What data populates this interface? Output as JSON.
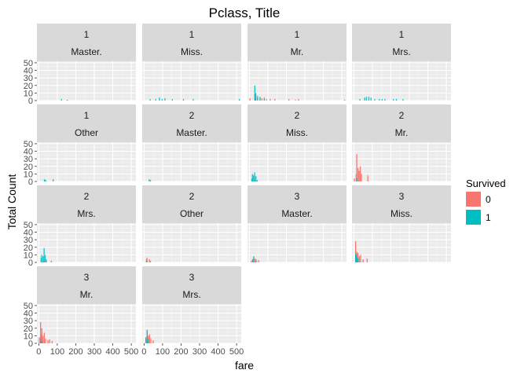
{
  "chart_data": {
    "type": "histogram",
    "title": "Pclass, Title",
    "xlabel": "fare",
    "ylabel": "Total Count",
    "xlim": [
      -10,
      525
    ],
    "ylim": [
      0,
      52
    ],
    "x_ticks": [
      0,
      100,
      200,
      300,
      400,
      500
    ],
    "x_tick_labels": [
      "0",
      "100",
      "200",
      "300",
      "400",
      "500"
    ],
    "y_ticks": [
      0,
      10,
      20,
      30,
      40,
      50
    ],
    "y_tick_labels": [
      "0",
      "10",
      "20",
      "30",
      "40",
      "50"
    ],
    "grid": true,
    "facet_grid": {
      "rows": 4,
      "cols": 4
    },
    "legend": {
      "title": "Survived",
      "position": "right",
      "entries": [
        {
          "label": "0",
          "color": "#F8766D"
        },
        {
          "label": "1",
          "color": "#00BFC4"
        }
      ]
    },
    "facets": [
      {
        "strip_top": "1",
        "strip_bottom": "Master.",
        "row": 0,
        "col": 0,
        "show_x_axis": false,
        "bars": [
          {
            "series": "1",
            "x": 120,
            "y": 2
          },
          {
            "series": "1",
            "x": 150,
            "y": 1
          },
          {
            "series": "0",
            "x": 152,
            "y": 1
          }
        ]
      },
      {
        "strip_top": "1",
        "strip_bottom": "Miss.",
        "row": 0,
        "col": 1,
        "show_x_axis": false,
        "bars": [
          {
            "series": "1",
            "x": 30,
            "y": 2
          },
          {
            "series": "1",
            "x": 60,
            "y": 2
          },
          {
            "series": "1",
            "x": 80,
            "y": 4
          },
          {
            "series": "1",
            "x": 95,
            "y": 2
          },
          {
            "series": "1",
            "x": 110,
            "y": 3
          },
          {
            "series": "1",
            "x": 150,
            "y": 2
          },
          {
            "series": "1",
            "x": 210,
            "y": 2
          },
          {
            "series": "1",
            "x": 263,
            "y": 2
          },
          {
            "series": "1",
            "x": 512,
            "y": 2
          }
        ]
      },
      {
        "strip_top": "1",
        "strip_bottom": "Mr.",
        "row": 0,
        "col": 2,
        "show_x_axis": false,
        "bars": [
          {
            "series": "0",
            "x": 0,
            "y": 3
          },
          {
            "series": "0",
            "x": 27,
            "y": 8
          },
          {
            "series": "1",
            "x": 27,
            "y": 20
          },
          {
            "series": "0",
            "x": 32,
            "y": 6
          },
          {
            "series": "1",
            "x": 32,
            "y": 10
          },
          {
            "series": "0",
            "x": 42,
            "y": 4
          },
          {
            "series": "1",
            "x": 42,
            "y": 6
          },
          {
            "series": "0",
            "x": 55,
            "y": 5
          },
          {
            "series": "1",
            "x": 55,
            "y": 4
          },
          {
            "series": "0",
            "x": 65,
            "y": 3
          },
          {
            "series": "0",
            "x": 78,
            "y": 4
          },
          {
            "series": "1",
            "x": 78,
            "y": 2
          },
          {
            "series": "0",
            "x": 90,
            "y": 2
          },
          {
            "series": "0",
            "x": 110,
            "y": 2
          },
          {
            "series": "0",
            "x": 135,
            "y": 2
          },
          {
            "series": "0",
            "x": 211,
            "y": 2
          },
          {
            "series": "0",
            "x": 247,
            "y": 1
          },
          {
            "series": "0",
            "x": 263,
            "y": 2
          },
          {
            "series": "1",
            "x": 512,
            "y": 1
          }
        ]
      },
      {
        "strip_top": "1",
        "strip_bottom": "Mrs.",
        "row": 0,
        "col": 3,
        "show_x_axis": false,
        "bars": [
          {
            "series": "1",
            "x": 30,
            "y": 2
          },
          {
            "series": "1",
            "x": 55,
            "y": 4
          },
          {
            "series": "1",
            "x": 65,
            "y": 5
          },
          {
            "series": "1",
            "x": 78,
            "y": 5
          },
          {
            "series": "1",
            "x": 90,
            "y": 4
          },
          {
            "series": "1",
            "x": 110,
            "y": 2
          },
          {
            "series": "1",
            "x": 135,
            "y": 2
          },
          {
            "series": "1",
            "x": 150,
            "y": 2
          },
          {
            "series": "1",
            "x": 165,
            "y": 2
          },
          {
            "series": "1",
            "x": 211,
            "y": 2
          },
          {
            "series": "1",
            "x": 227,
            "y": 2
          },
          {
            "series": "1",
            "x": 263,
            "y": 2
          }
        ]
      },
      {
        "strip_top": "1",
        "strip_bottom": "Other",
        "row": 1,
        "col": 0,
        "show_x_axis": false,
        "bars": [
          {
            "series": "1",
            "x": 28,
            "y": 3
          },
          {
            "series": "0",
            "x": 28,
            "y": 1
          },
          {
            "series": "1",
            "x": 35,
            "y": 2
          },
          {
            "series": "1",
            "x": 75,
            "y": 3
          }
        ]
      },
      {
        "strip_top": "2",
        "strip_bottom": "Master.",
        "row": 1,
        "col": 1,
        "show_x_axis": false,
        "bars": [
          {
            "series": "1",
            "x": 25,
            "y": 3
          },
          {
            "series": "1",
            "x": 32,
            "y": 2
          }
        ]
      },
      {
        "strip_top": "2",
        "strip_bottom": "Miss.",
        "row": 1,
        "col": 2,
        "show_x_axis": false,
        "bars": [
          {
            "series": "1",
            "x": 11,
            "y": 4
          },
          {
            "series": "1",
            "x": 14,
            "y": 10
          },
          {
            "series": "1",
            "x": 20,
            "y": 8
          },
          {
            "series": "1",
            "x": 26,
            "y": 12
          },
          {
            "series": "0",
            "x": 26,
            "y": 2
          },
          {
            "series": "1",
            "x": 33,
            "y": 7
          },
          {
            "series": "1",
            "x": 40,
            "y": 2
          }
        ]
      },
      {
        "strip_top": "2",
        "strip_bottom": "Mr.",
        "row": 1,
        "col": 3,
        "show_x_axis": false,
        "bars": [
          {
            "series": "0",
            "x": 0,
            "y": 4
          },
          {
            "series": "0",
            "x": 10,
            "y": 10
          },
          {
            "series": "0",
            "x": 13,
            "y": 36
          },
          {
            "series": "1",
            "x": 13,
            "y": 4
          },
          {
            "series": "0",
            "x": 20,
            "y": 18
          },
          {
            "series": "0",
            "x": 26,
            "y": 14
          },
          {
            "series": "0",
            "x": 32,
            "y": 20
          },
          {
            "series": "0",
            "x": 38,
            "y": 10
          },
          {
            "series": "0",
            "x": 73,
            "y": 8
          }
        ]
      },
      {
        "strip_top": "2",
        "strip_bottom": "Mrs.",
        "row": 2,
        "col": 0,
        "show_x_axis": false,
        "bars": [
          {
            "series": "1",
            "x": 10,
            "y": 6
          },
          {
            "series": "1",
            "x": 13,
            "y": 10
          },
          {
            "series": "1",
            "x": 20,
            "y": 8
          },
          {
            "series": "1",
            "x": 26,
            "y": 19
          },
          {
            "series": "0",
            "x": 26,
            "y": 3
          },
          {
            "series": "1",
            "x": 32,
            "y": 10
          },
          {
            "series": "1",
            "x": 38,
            "y": 4
          },
          {
            "series": "1",
            "x": 65,
            "y": 2
          }
        ]
      },
      {
        "strip_top": "2",
        "strip_bottom": "Other",
        "row": 2,
        "col": 1,
        "show_x_axis": false,
        "bars": [
          {
            "series": "0",
            "x": 10,
            "y": 4
          },
          {
            "series": "0",
            "x": 13,
            "y": 6
          },
          {
            "series": "1",
            "x": 13,
            "y": 2
          },
          {
            "series": "0",
            "x": 26,
            "y": 4
          },
          {
            "series": "0",
            "x": 32,
            "y": 2
          }
        ]
      },
      {
        "strip_top": "3",
        "strip_bottom": "Master.",
        "row": 2,
        "col": 2,
        "show_x_axis": false,
        "bars": [
          {
            "series": "0",
            "x": 8,
            "y": 2
          },
          {
            "series": "0",
            "x": 15,
            "y": 4
          },
          {
            "series": "1",
            "x": 15,
            "y": 4
          },
          {
            "series": "0",
            "x": 21,
            "y": 7
          },
          {
            "series": "1",
            "x": 21,
            "y": 8
          },
          {
            "series": "0",
            "x": 28,
            "y": 5
          },
          {
            "series": "0",
            "x": 34,
            "y": 4
          },
          {
            "series": "1",
            "x": 34,
            "y": 2
          },
          {
            "series": "0",
            "x": 47,
            "y": 3
          }
        ]
      },
      {
        "strip_top": "3",
        "strip_bottom": "Miss.",
        "row": 2,
        "col": 3,
        "show_x_axis": false,
        "bars": [
          {
            "series": "0",
            "x": 7,
            "y": 28
          },
          {
            "series": "1",
            "x": 7,
            "y": 12
          },
          {
            "series": "0",
            "x": 10,
            "y": 10
          },
          {
            "series": "1",
            "x": 10,
            "y": 10
          },
          {
            "series": "0",
            "x": 14,
            "y": 14
          },
          {
            "series": "1",
            "x": 14,
            "y": 7
          },
          {
            "series": "0",
            "x": 20,
            "y": 12
          },
          {
            "series": "1",
            "x": 20,
            "y": 5
          },
          {
            "series": "0",
            "x": 27,
            "y": 8
          },
          {
            "series": "0",
            "x": 34,
            "y": 10
          },
          {
            "series": "0",
            "x": 47,
            "y": 4
          },
          {
            "series": "0",
            "x": 69,
            "y": 5
          }
        ]
      },
      {
        "strip_top": "3",
        "strip_bottom": "Mr.",
        "row": 3,
        "col": 0,
        "show_x_axis": true,
        "bars": [
          {
            "series": "0",
            "x": 0,
            "y": 8
          },
          {
            "series": "0",
            "x": 7,
            "y": 28
          },
          {
            "series": "1",
            "x": 7,
            "y": 6
          },
          {
            "series": "0",
            "x": 10,
            "y": 12
          },
          {
            "series": "0",
            "x": 14,
            "y": 20
          },
          {
            "series": "1",
            "x": 14,
            "y": 3
          },
          {
            "series": "0",
            "x": 20,
            "y": 10
          },
          {
            "series": "0",
            "x": 27,
            "y": 14
          },
          {
            "series": "0",
            "x": 34,
            "y": 6
          },
          {
            "series": "0",
            "x": 47,
            "y": 4
          },
          {
            "series": "0",
            "x": 56,
            "y": 5
          },
          {
            "series": "0",
            "x": 69,
            "y": 3
          }
        ]
      },
      {
        "strip_top": "3",
        "strip_bottom": "Mrs.",
        "row": 3,
        "col": 1,
        "show_x_axis": true,
        "bars": [
          {
            "series": "0",
            "x": 7,
            "y": 6
          },
          {
            "series": "1",
            "x": 7,
            "y": 8
          },
          {
            "series": "0",
            "x": 14,
            "y": 16
          },
          {
            "series": "1",
            "x": 14,
            "y": 18
          },
          {
            "series": "0",
            "x": 20,
            "y": 10
          },
          {
            "series": "1",
            "x": 20,
            "y": 6
          },
          {
            "series": "0",
            "x": 27,
            "y": 12
          },
          {
            "series": "0",
            "x": 34,
            "y": 6
          },
          {
            "series": "0",
            "x": 47,
            "y": 4
          }
        ]
      }
    ]
  }
}
